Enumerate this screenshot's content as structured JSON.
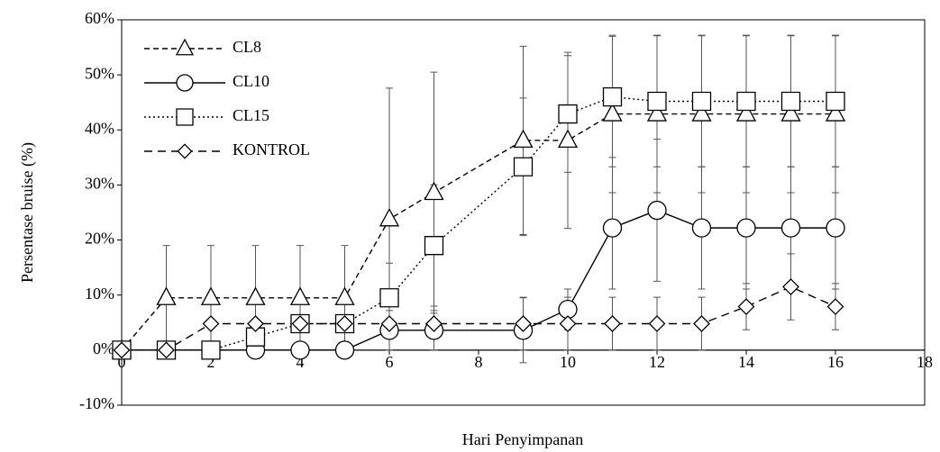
{
  "chart_data": {
    "type": "line",
    "x_label": "Hari Penyimpanan",
    "y_label": "Persentase bruise (%)",
    "x": [
      0,
      1,
      2,
      3,
      4,
      5,
      6,
      7,
      9,
      10,
      11,
      12,
      13,
      14,
      15,
      16
    ],
    "series": [
      {
        "name": "CL8",
        "color": "#000000",
        "dash": "6,4",
        "marker": "triangle",
        "values": [
          0,
          9.5,
          9.5,
          9.5,
          9.5,
          9.5,
          23.8,
          28.6,
          38.1,
          38.1,
          42.9,
          42.9,
          42.9,
          42.9,
          42.9,
          42.9
        ],
        "errors": [
          0,
          9.5,
          9.5,
          9.5,
          9.5,
          9.5,
          23.8,
          21.9,
          17.1,
          16,
          14.3,
          14.3,
          14.3,
          14.3,
          14.3,
          14.3
        ]
      },
      {
        "name": "CL10",
        "color": "#000000",
        "dash": "none",
        "marker": "circle",
        "values": [
          0,
          0,
          0,
          0,
          0,
          0,
          3.6,
          3.6,
          3.6,
          7.4,
          22.2,
          25.4,
          22.2,
          22.2,
          22.2,
          22.2
        ],
        "errors": [
          0,
          0,
          0,
          0,
          0,
          0,
          3.6,
          3.6,
          5.9,
          3.7,
          11.1,
          12.9,
          11.1,
          11.1,
          11.1,
          11.1
        ]
      },
      {
        "name": "CL15",
        "color": "#000000",
        "dash": "2,3",
        "marker": "square",
        "values": [
          0,
          0,
          0,
          2.4,
          4.8,
          4.8,
          9.5,
          19,
          33.3,
          42.9,
          46,
          45.2,
          45.2,
          45.2,
          45.2,
          45.2
        ],
        "errors": [
          0,
          0,
          0,
          2.4,
          4.8,
          4.8,
          6.3,
          11,
          12.5,
          10.6,
          11,
          11.9,
          11.9,
          11.9,
          11.9,
          11.9
        ]
      },
      {
        "name": "KONTROL",
        "color": "#000000",
        "dash": "9,6",
        "marker": "diamond",
        "values": [
          0,
          0,
          4.8,
          4.8,
          4.8,
          4.8,
          4.8,
          4.8,
          4.8,
          4.8,
          4.8,
          4.8,
          4.8,
          7.9,
          11.5,
          7.9
        ],
        "errors": [
          0,
          0,
          0,
          0,
          0,
          0,
          0,
          0,
          4.8,
          4.8,
          4.8,
          4.8,
          4.8,
          4.2,
          6,
          4.2
        ]
      }
    ],
    "xlim": [
      0,
      18
    ],
    "xticks": [
      0,
      2,
      4,
      6,
      8,
      10,
      12,
      14,
      16,
      18
    ],
    "ylim": [
      -10,
      60
    ],
    "yticks": [
      {
        "value": -10,
        "label": "-10%"
      },
      {
        "value": 0,
        "label": "0%"
      },
      {
        "value": 10,
        "label": "10%"
      },
      {
        "value": 20,
        "label": "20%"
      },
      {
        "value": 30,
        "label": "30%"
      },
      {
        "value": 40,
        "label": "40%"
      },
      {
        "value": 50,
        "label": "50%"
      },
      {
        "value": 60,
        "label": "60%"
      }
    ],
    "grid": false,
    "legend": "upper left"
  }
}
